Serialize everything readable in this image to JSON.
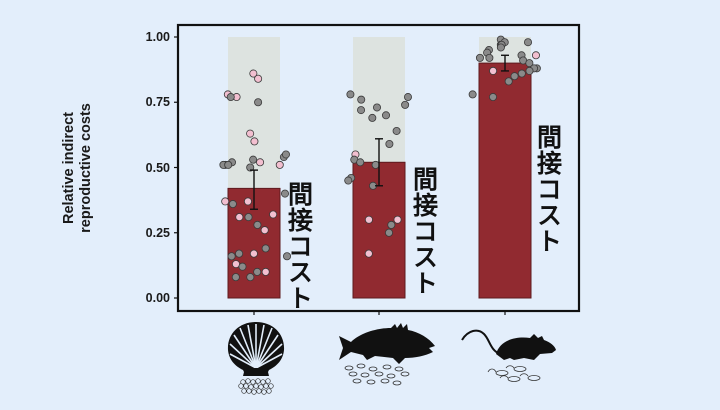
{
  "chart_data": {
    "type": "bar",
    "title": "",
    "xlabel": "",
    "ylabel": "Relative indirect\nreproductive costs",
    "ylabel_lines": [
      "Relative indirect",
      "reproductive costs"
    ],
    "ylim": [
      0,
      1
    ],
    "yticks": [
      0.0,
      0.25,
      0.5,
      0.75,
      1.0
    ],
    "ytick_labels": [
      "0.00",
      "0.25",
      "0.50",
      "0.75",
      "1.00"
    ],
    "grid": false,
    "legend": null,
    "categories": [
      "scallop",
      "fish",
      "rodent"
    ],
    "category_icons": [
      "scallop-with-eggs-icon",
      "fish-with-larvae-icon",
      "rat-with-pups-icon"
    ],
    "values": [
      0.42,
      0.52,
      0.9
    ],
    "error_bars": [
      {
        "low": 0.34,
        "high": 0.49
      },
      {
        "low": 0.43,
        "high": 0.61
      },
      {
        "low": 0.87,
        "high": 0.93
      }
    ],
    "background_bar_value": 1.0,
    "bar_annotation": "間接コスト",
    "points": [
      {
        "category": "scallop",
        "gray": [
          0.77,
          0.75,
          0.53,
          0.52,
          0.51,
          0.54,
          0.55,
          0.51,
          0.5,
          0.4,
          0.36,
          0.31,
          0.28,
          0.19,
          0.17,
          0.16,
          0.16,
          0.08,
          0.08,
          0.1,
          0.12
        ],
        "pink": [
          0.86,
          0.84,
          0.78,
          0.77,
          0.63,
          0.6,
          0.51,
          0.51,
          0.52,
          0.37,
          0.31,
          0.32,
          0.26,
          0.37,
          0.17,
          0.13,
          0.1
        ]
      },
      {
        "category": "fish",
        "gray": [
          0.78,
          0.77,
          0.76,
          0.74,
          0.73,
          0.72,
          0.7,
          0.69,
          0.64,
          0.59,
          0.53,
          0.52,
          0.51,
          0.46,
          0.45,
          0.43,
          0.28,
          0.25
        ],
        "pink": [
          0.55,
          0.3,
          0.3,
          0.17
        ]
      },
      {
        "category": "rodent",
        "gray": [
          0.99,
          0.98,
          0.97,
          0.98,
          0.97,
          0.96,
          0.95,
          0.94,
          0.93,
          0.92,
          0.92,
          0.91,
          0.9,
          0.88,
          0.88,
          0.87,
          0.86,
          0.85,
          0.83,
          0.78,
          0.77
        ],
        "pink": [
          0.93,
          0.87
        ]
      }
    ]
  },
  "colors": {
    "background": "#e3eefb",
    "bar_fill": "#912a30",
    "bar_edge": "#5e1a1e",
    "ghost_bar": "#dde3e0",
    "gray_point": "#8a8a8a",
    "pink_point": "#f2bfd0",
    "frame": "#111111"
  }
}
